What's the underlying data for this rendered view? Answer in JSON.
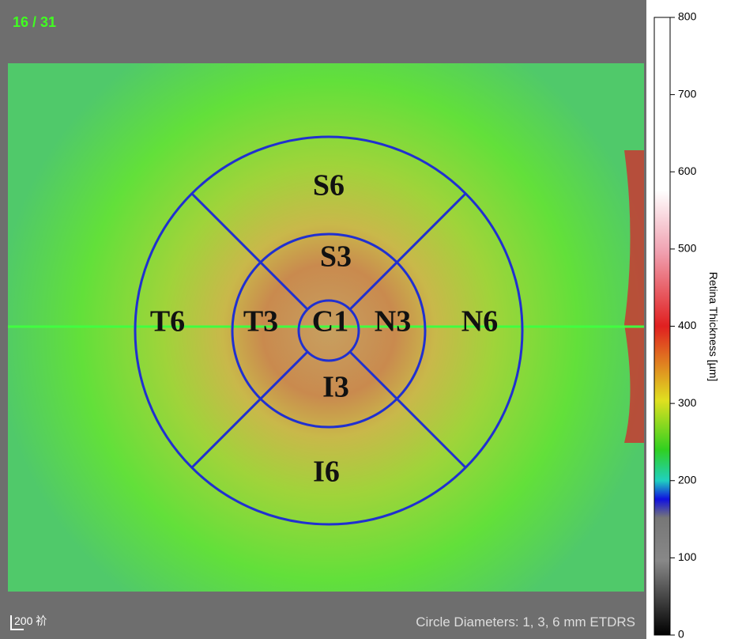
{
  "header": {
    "frame": "16 / 31"
  },
  "sectors": {
    "S6": "S6",
    "S3": "S3",
    "T6": "T6",
    "T3": "T3",
    "C1": "C1",
    "N3": "N3",
    "N6": "N6",
    "I3": "I3",
    "I6": "I6"
  },
  "scale_bar": "200 祄",
  "footer": "Circle Diameters: 1, 3, 6 mm ETDRS",
  "colorbar": {
    "label": "Retina Thickness [µm]",
    "lim": [
      0,
      800
    ],
    "ticks": [
      0,
      100,
      200,
      300,
      400,
      500,
      600,
      700,
      800
    ]
  }
}
